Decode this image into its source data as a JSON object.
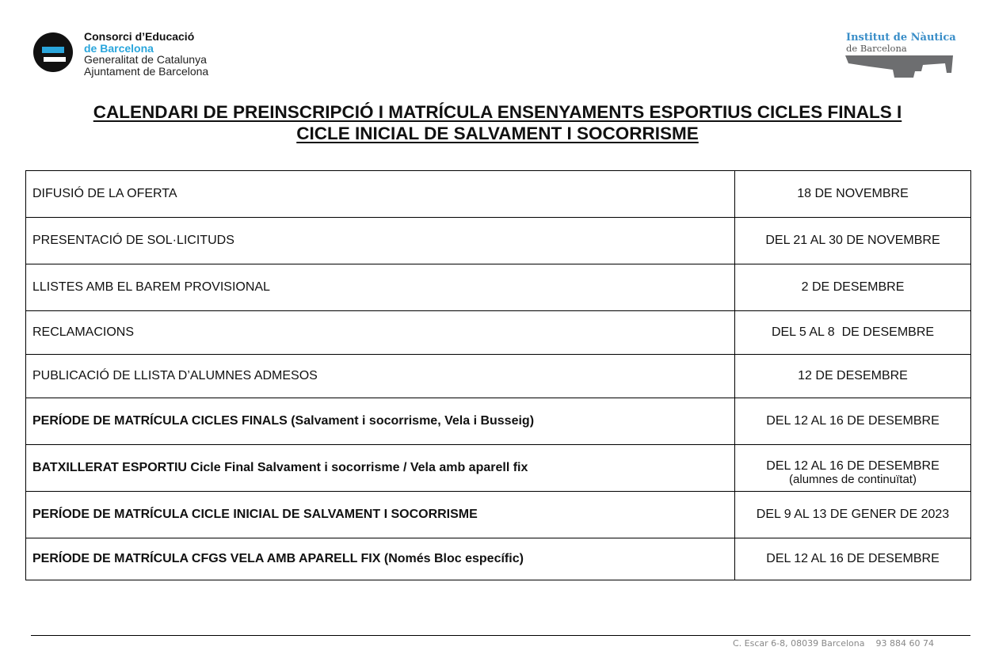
{
  "header": {
    "left_logo": {
      "line1": "Consorci d’Educació",
      "line2": "de Barcelona",
      "line3": "Generalitat de Catalunya",
      "line4": "Ajuntament de Barcelona",
      "colors": {
        "accent": "#2aa6dc"
      }
    },
    "right_logo": {
      "line1": "Institut de Nàutica",
      "line2": "de Barcelona"
    }
  },
  "title": {
    "line1": "CALENDARI DE PREINSCRIPCIÓ I MATRÍCULA ENSENYAMENTS ESPORTIUS CICLES FINALS I",
    "line2": "CICLE INICIAL DE SALVAMENT I SOCORRISME"
  },
  "rows": [
    {
      "label": "DIFUSIÓ DE LA OFERTA",
      "date": "18 DE NOVEMBRE"
    },
    {
      "label": "PRESENTACIÓ DE SOL·LICITUDS",
      "date": "DEL 21 AL 30 DE NOVEMBRE"
    },
    {
      "label": "LLISTES AMB EL BAREM PROVISIONAL",
      "date": "2 DE DESEMBRE"
    },
    {
      "label": "RECLAMACIONS",
      "date": "DEL 5 AL 8  DE DESEMBRE"
    },
    {
      "label": "PUBLICACIÓ DE LLISTA D’ALUMNES ADMESOS",
      "date": "12 DE DESEMBRE"
    },
    {
      "label": "PERÍODE DE MATRÍCULA CICLES FINALS (Salvament i socorrisme, Vela i Busseig)",
      "date": "DEL 12 AL 16 DE DESEMBRE"
    },
    {
      "label": "BATXILLERAT ESPORTIU Cicle Final Salvament i socorrisme / Vela amb aparell fix",
      "date": "DEL 12 AL 16 DE DESEMBRE",
      "note": "(alumnes de continuïtat)"
    },
    {
      "label": "PERÍODE DE MATRÍCULA CICLE INICIAL DE SALVAMENT I SOCORRISME",
      "date": "DEL 9 AL 13 DE GENER DE 2023"
    },
    {
      "label": "PERÍODE DE MATRÍCULA CFGS VELA AMB APARELL FIX (Només Bloc específic)",
      "date": "DEL 12 AL 16 DE DESEMBRE"
    }
  ],
  "footer": {
    "address": "C. Escar 6-8, 08039 Barcelona",
    "phone": "93 884 60 74"
  }
}
